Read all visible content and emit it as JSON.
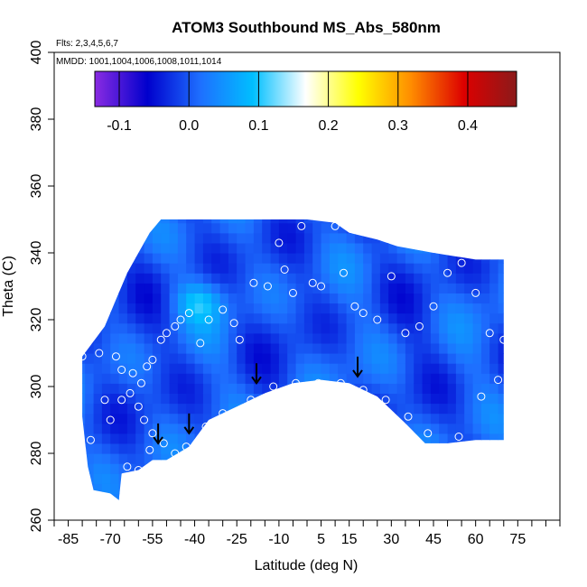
{
  "chart_data": {
    "type": "heatmap",
    "title": "ATOM3 Southbound MS_Abs_580nm",
    "annotations": {
      "flights": "Flts: 2,3,4,5,6,7",
      "dates": "MMDD: 1001,1004,1006,1008,1011,1014"
    },
    "xlabel": "Latitude (deg N)",
    "ylabel": "Theta (C)",
    "xlim": [
      -90,
      90
    ],
    "ylim": [
      260,
      400
    ],
    "x_ticks": [
      "-85",
      "-70",
      "-55",
      "-40",
      "-25",
      "-10",
      "5",
      "15",
      "30",
      "45",
      "60",
      "75"
    ],
    "y_ticks": [
      "260",
      "280",
      "300",
      "320",
      "340",
      "360",
      "380",
      "400"
    ],
    "colorbar": {
      "range": [
        -0.135,
        0.47
      ],
      "tick_values": [
        -0.1,
        0.0,
        0.1,
        0.2,
        0.3,
        0.4
      ],
      "tick_labels": [
        "-0.1",
        "0.0",
        "0.1",
        "0.2",
        "0.3",
        "0.4"
      ],
      "colors": [
        "#8a2be2",
        "#0000cd",
        "#1e6fff",
        "#00bfff",
        "#ffffff",
        "#ffff00",
        "#ff8c00",
        "#dd0000",
        "#8b1a1a"
      ]
    },
    "field": {
      "base_value": 0.0,
      "hotspot": {
        "lat": -40,
        "theta": 324,
        "value": 0.07
      }
    },
    "coverage_top": [
      {
        "lat": -80,
        "theta": 309
      },
      {
        "lat": -72,
        "theta": 318
      },
      {
        "lat": -68,
        "theta": 326
      },
      {
        "lat": -64,
        "theta": 334
      },
      {
        "lat": -60,
        "theta": 340
      },
      {
        "lat": -56,
        "theta": 346
      },
      {
        "lat": -52,
        "theta": 350
      },
      {
        "lat": -40,
        "theta": 350
      },
      {
        "lat": -20,
        "theta": 350
      },
      {
        "lat": 0,
        "theta": 350
      },
      {
        "lat": 10,
        "theta": 349
      },
      {
        "lat": 15,
        "theta": 346
      },
      {
        "lat": 25,
        "theta": 344
      },
      {
        "lat": 32,
        "theta": 342
      },
      {
        "lat": 45,
        "theta": 340
      },
      {
        "lat": 60,
        "theta": 338
      },
      {
        "lat": 70,
        "theta": 338
      }
    ],
    "coverage_bottom": [
      {
        "lat": -80,
        "theta": 291
      },
      {
        "lat": -78,
        "theta": 276
      },
      {
        "lat": -76,
        "theta": 269
      },
      {
        "lat": -70,
        "theta": 268
      },
      {
        "lat": -67,
        "theta": 266
      },
      {
        "lat": -66,
        "theta": 274
      },
      {
        "lat": -60,
        "theta": 275
      },
      {
        "lat": -55,
        "theta": 278
      },
      {
        "lat": -50,
        "theta": 278
      },
      {
        "lat": -42,
        "theta": 282
      },
      {
        "lat": -35,
        "theta": 290
      },
      {
        "lat": -25,
        "theta": 294
      },
      {
        "lat": -15,
        "theta": 298
      },
      {
        "lat": -5,
        "theta": 301
      },
      {
        "lat": 5,
        "theta": 302
      },
      {
        "lat": 15,
        "theta": 301
      },
      {
        "lat": 25,
        "theta": 297
      },
      {
        "lat": 35,
        "theta": 289
      },
      {
        "lat": 42,
        "theta": 283
      },
      {
        "lat": 50,
        "theta": 283
      },
      {
        "lat": 60,
        "theta": 284
      },
      {
        "lat": 70,
        "theta": 284
      }
    ],
    "samples": [
      {
        "lat": -80,
        "theta": 309
      },
      {
        "lat": -74,
        "theta": 310
      },
      {
        "lat": -68,
        "theta": 309
      },
      {
        "lat": -66,
        "theta": 305
      },
      {
        "lat": -62,
        "theta": 304
      },
      {
        "lat": -59,
        "theta": 301
      },
      {
        "lat": -57,
        "theta": 306
      },
      {
        "lat": -55,
        "theta": 308
      },
      {
        "lat": -52,
        "theta": 314
      },
      {
        "lat": -50,
        "theta": 316
      },
      {
        "lat": -47,
        "theta": 318
      },
      {
        "lat": -45,
        "theta": 320
      },
      {
        "lat": -42,
        "theta": 322
      },
      {
        "lat": -38,
        "theta": 313
      },
      {
        "lat": -35,
        "theta": 320
      },
      {
        "lat": -30,
        "theta": 323
      },
      {
        "lat": -26,
        "theta": 319
      },
      {
        "lat": -24,
        "theta": 314
      },
      {
        "lat": -19,
        "theta": 331
      },
      {
        "lat": -14,
        "theta": 330
      },
      {
        "lat": -10,
        "theta": 343
      },
      {
        "lat": -8,
        "theta": 335
      },
      {
        "lat": -5,
        "theta": 328
      },
      {
        "lat": -2,
        "theta": 348
      },
      {
        "lat": 2,
        "theta": 331
      },
      {
        "lat": 5,
        "theta": 330
      },
      {
        "lat": 10,
        "theta": 348
      },
      {
        "lat": 13,
        "theta": 334
      },
      {
        "lat": 17,
        "theta": 324
      },
      {
        "lat": 20,
        "theta": 322
      },
      {
        "lat": 25,
        "theta": 320
      },
      {
        "lat": 30,
        "theta": 333
      },
      {
        "lat": 35,
        "theta": 316
      },
      {
        "lat": 40,
        "theta": 318
      },
      {
        "lat": 45,
        "theta": 324
      },
      {
        "lat": 50,
        "theta": 334
      },
      {
        "lat": 55,
        "theta": 337
      },
      {
        "lat": 60,
        "theta": 328
      },
      {
        "lat": 65,
        "theta": 316
      },
      {
        "lat": 70,
        "theta": 314
      },
      {
        "lat": -72,
        "theta": 296
      },
      {
        "lat": -70,
        "theta": 290
      },
      {
        "lat": -66,
        "theta": 296
      },
      {
        "lat": -63,
        "theta": 298
      },
      {
        "lat": -60,
        "theta": 294
      },
      {
        "lat": -58,
        "theta": 290
      },
      {
        "lat": -55,
        "theta": 286
      },
      {
        "lat": -51,
        "theta": 283
      },
      {
        "lat": -47,
        "theta": 280
      },
      {
        "lat": -43,
        "theta": 282
      },
      {
        "lat": -36,
        "theta": 288
      },
      {
        "lat": -30,
        "theta": 292
      },
      {
        "lat": -20,
        "theta": 296
      },
      {
        "lat": -12,
        "theta": 300
      },
      {
        "lat": -4,
        "theta": 301
      },
      {
        "lat": 4,
        "theta": 301
      },
      {
        "lat": 12,
        "theta": 301
      },
      {
        "lat": 20,
        "theta": 299
      },
      {
        "lat": 28,
        "theta": 296
      },
      {
        "lat": 36,
        "theta": 291
      },
      {
        "lat": 43,
        "theta": 286
      },
      {
        "lat": 54,
        "theta": 285
      },
      {
        "lat": 62,
        "theta": 297
      },
      {
        "lat": 68,
        "theta": 302
      },
      {
        "lat": -64,
        "theta": 276
      },
      {
        "lat": -60,
        "theta": 275
      },
      {
        "lat": -56,
        "theta": 281
      },
      {
        "lat": -77,
        "theta": 284
      }
    ],
    "arrows": [
      {
        "lat": -53,
        "theta": 283
      },
      {
        "lat": -42,
        "theta": 286
      },
      {
        "lat": -18,
        "theta": 301
      },
      {
        "lat": 18,
        "theta": 303
      }
    ]
  }
}
